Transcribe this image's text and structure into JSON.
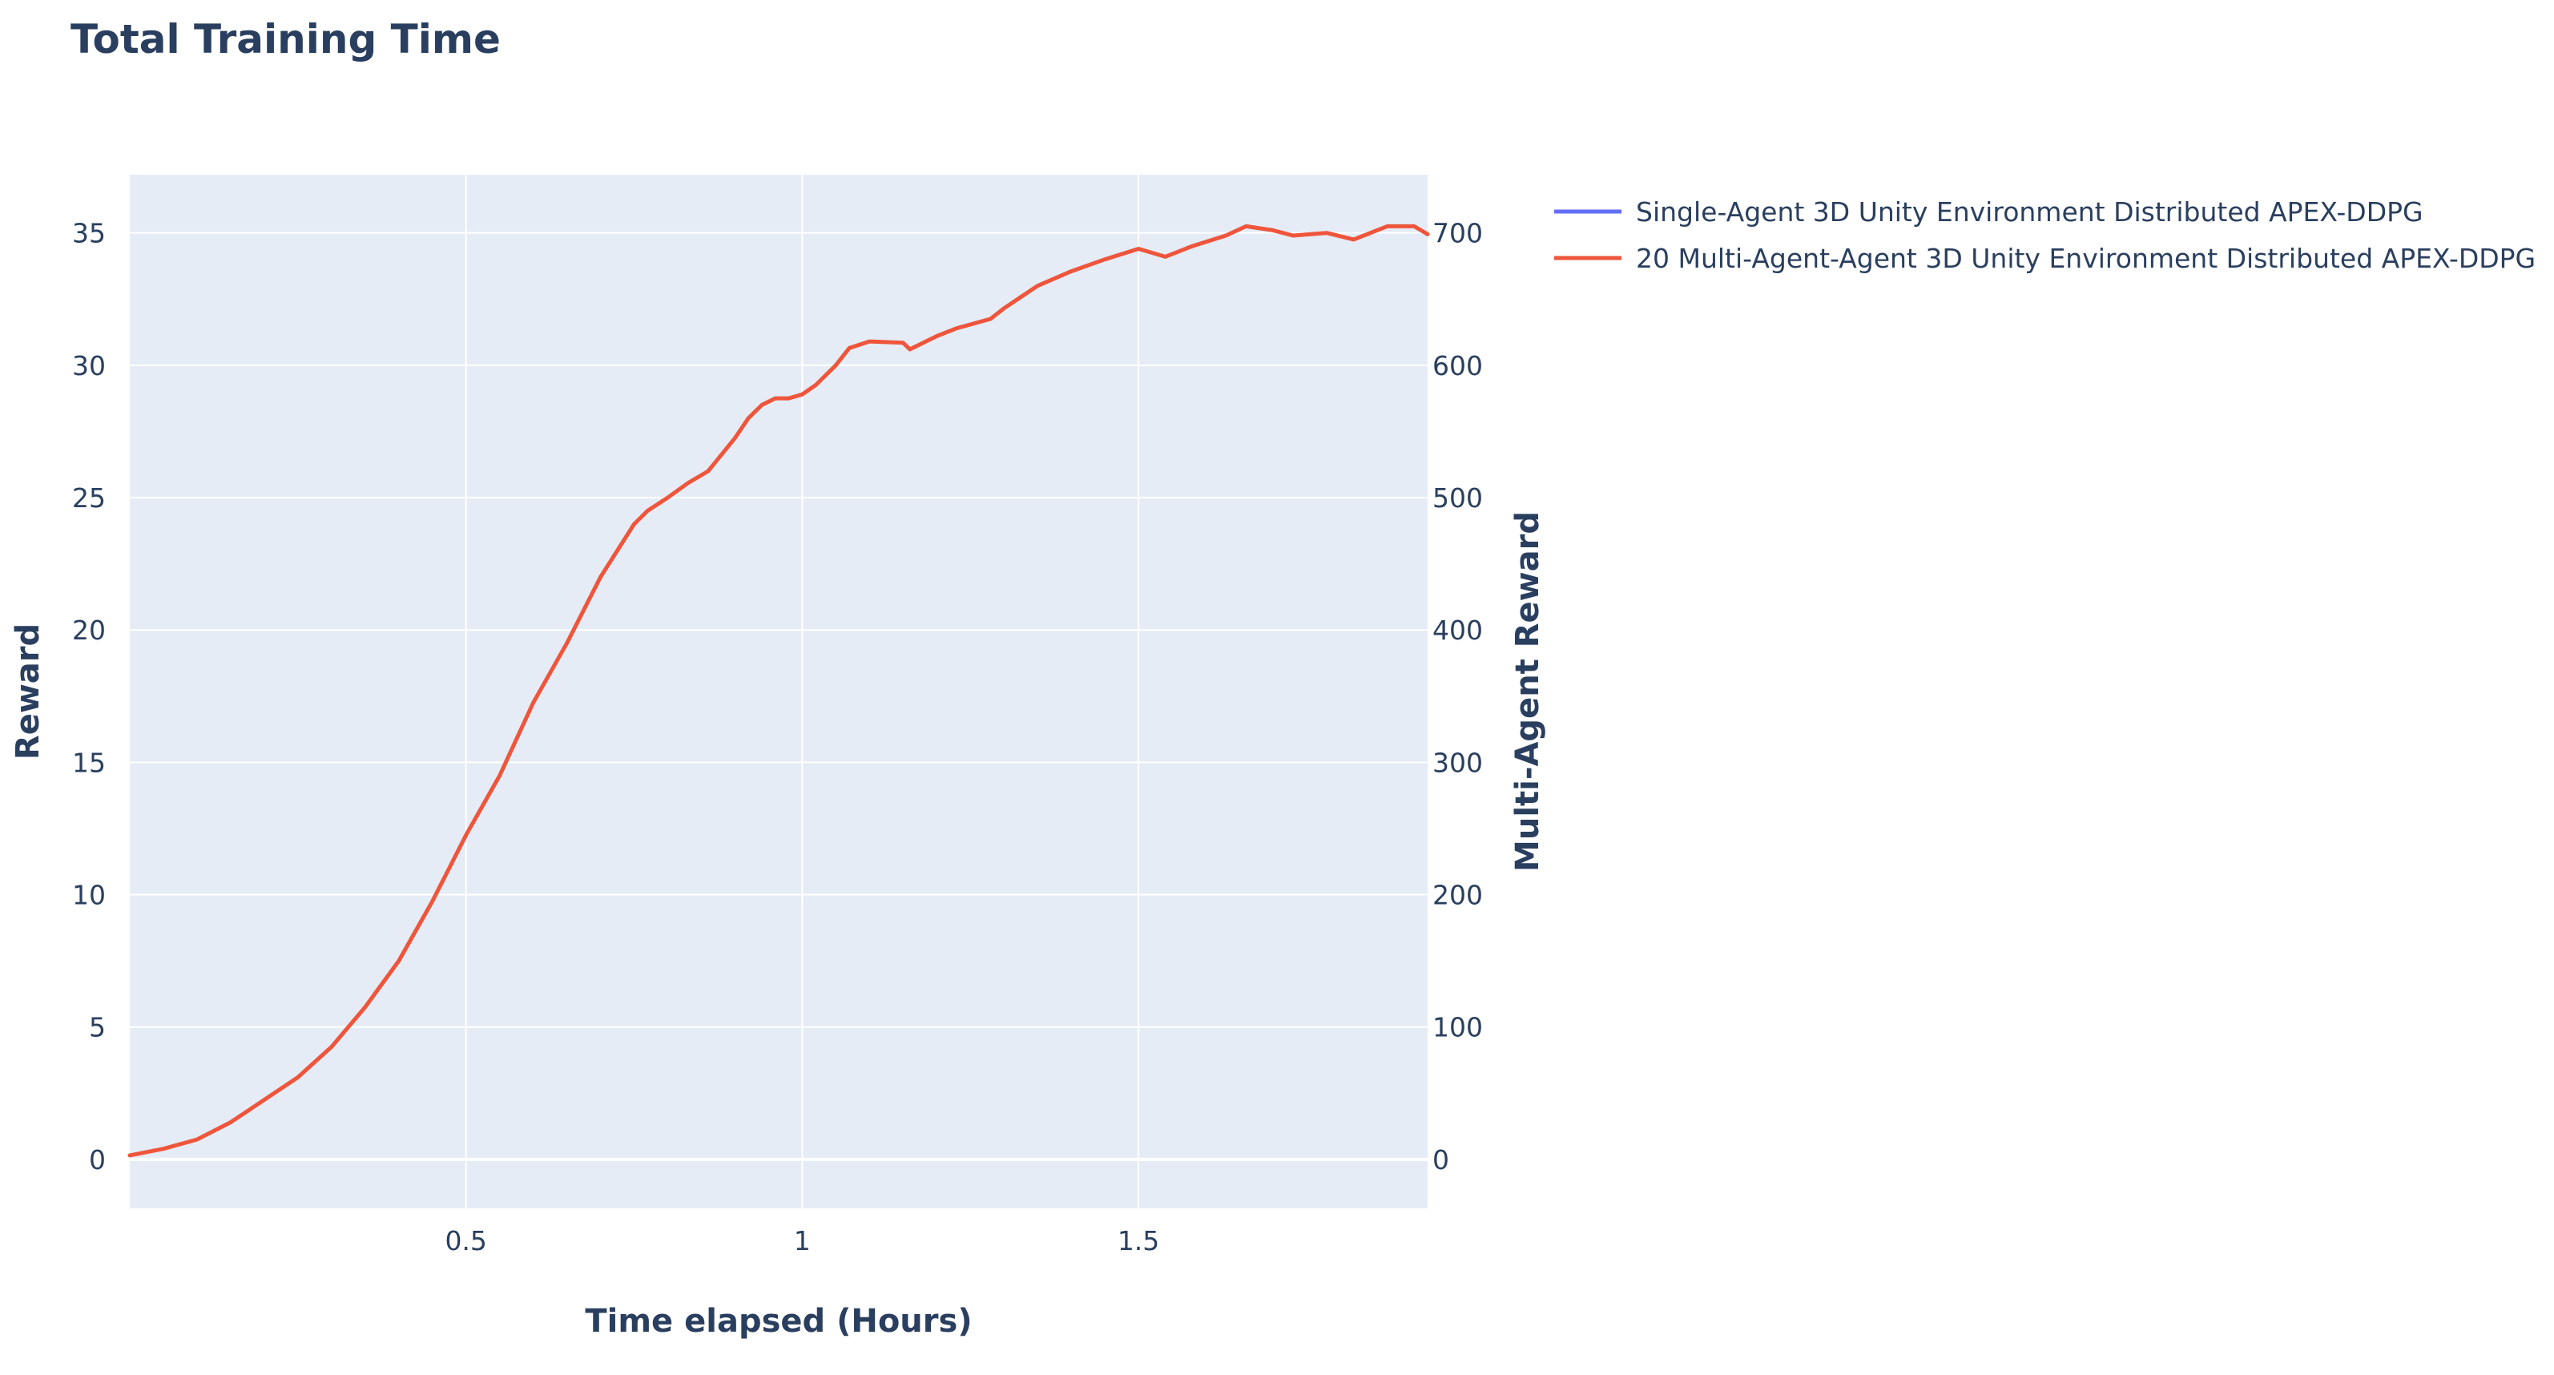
{
  "chart_data": {
    "type": "line",
    "title": "Total Training Time",
    "xlabel": "Time elapsed (Hours)",
    "ylabel": "Reward",
    "y2label": "Multi-Agent Reward",
    "xlim": [
      0,
      1.93
    ],
    "ylim": [
      -1.85,
      37.2
    ],
    "y2lim": [
      -37,
      744
    ],
    "x_ticks": [
      0.5,
      1,
      1.5
    ],
    "x_tick_labels": [
      "0.5",
      "1",
      "1.5"
    ],
    "y_ticks": [
      0,
      5,
      10,
      15,
      20,
      25,
      30,
      35
    ],
    "y_tick_labels": [
      "0",
      "5",
      "10",
      "15",
      "20",
      "25",
      "30",
      "35"
    ],
    "y2_ticks": [
      0,
      100,
      200,
      300,
      400,
      500,
      600,
      700
    ],
    "y2_tick_labels": [
      "0",
      "100",
      "200",
      "300",
      "400",
      "500",
      "600",
      "700"
    ],
    "grid": true,
    "legend_position": "top-right, outside plot",
    "colors": {
      "plot_bg": "#e5ecf6",
      "grid": "#ffffff",
      "text": "#2a3f5f"
    },
    "series": [
      {
        "name": "Single-Agent 3D Unity Environment Distributed APEX-DDPG",
        "color": "#636efa",
        "axis": "y",
        "x": [],
        "y": []
      },
      {
        "name": "20 Multi-Agent-Agent 3D Unity Environment Distributed APEX-DDPG",
        "color": "#ef553b",
        "axis": "y2",
        "x": [
          0,
          0.05,
          0.1,
          0.15,
          0.2,
          0.25,
          0.3,
          0.35,
          0.4,
          0.45,
          0.5,
          0.55,
          0.6,
          0.65,
          0.7,
          0.75,
          0.77,
          0.8,
          0.83,
          0.86,
          0.9,
          0.92,
          0.94,
          0.96,
          0.98,
          1.0,
          1.02,
          1.05,
          1.07,
          1.1,
          1.15,
          1.16,
          1.2,
          1.23,
          1.28,
          1.3,
          1.35,
          1.4,
          1.45,
          1.5,
          1.54,
          1.58,
          1.63,
          1.66,
          1.7,
          1.73,
          1.78,
          1.82,
          1.87,
          1.91,
          1.93
        ],
        "y": [
          3,
          8,
          15,
          28,
          45,
          62,
          85,
          115,
          150,
          195,
          245,
          290,
          345,
          390,
          440,
          480,
          490,
          500,
          511,
          520,
          545,
          560,
          570,
          575,
          575,
          578,
          585,
          600,
          613,
          618,
          617,
          612,
          622,
          628,
          635,
          643,
          660,
          671,
          680,
          688,
          682,
          690,
          698,
          705,
          702,
          698,
          700,
          695,
          705,
          705,
          699
        ]
      }
    ]
  }
}
